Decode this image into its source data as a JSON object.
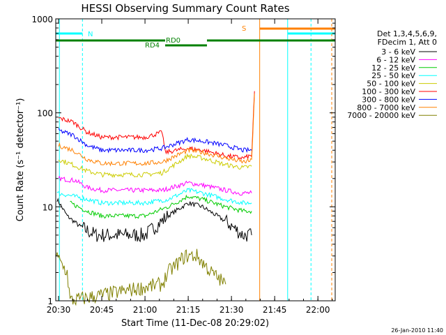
{
  "chart_data": {
    "type": "line",
    "title": "HESSI Observing Summary Count Rates",
    "xlabel": "Start Time (11-Dec-08 20:29:02)",
    "ylabel": "Count Rate (s⁻¹ detector⁻¹)",
    "y_scale": "log",
    "ylim": [
      1,
      1000
    ],
    "xlim": [
      "20:29:02",
      "22:06:00"
    ],
    "x_ticks": [
      "20:30",
      "20:45",
      "21:00",
      "21:15",
      "21:30",
      "21:45",
      "22:00"
    ],
    "y_ticks": [
      "1",
      "10",
      "100",
      "1000"
    ],
    "grid": false,
    "legend_position": "right",
    "legend_header": [
      "Det 1,3,4,5,6,9,",
      "FDecim 1, Att 0"
    ],
    "series": [
      {
        "name": "3 - 6 keV",
        "color": "#000000",
        "x": [
          "20:29:30",
          "20:33:00",
          "20:38:00",
          "20:43:00",
          "21:00:00",
          "21:08:00",
          "21:15:00",
          "21:20:00",
          "21:28:00",
          "21:34:00",
          "21:37:00"
        ],
        "values": [
          12,
          8,
          6,
          5,
          5,
          8,
          11,
          10,
          7,
          5,
          5
        ]
      },
      {
        "name": "6 - 12 keV",
        "color": "#ff00ff",
        "x": [
          "20:30:00",
          "20:36:00",
          "20:40:00",
          "20:45:00",
          "21:00:00",
          "21:06:00",
          "21:15:00",
          "21:20:00",
          "21:28:00",
          "21:33:00",
          "21:37:00"
        ],
        "values": [
          20,
          19,
          16,
          15,
          15,
          15,
          18,
          17,
          15,
          14,
          14
        ]
      },
      {
        "name": "12 - 25 keV",
        "color": "#00cc00",
        "x": [
          "20:34:00",
          "20:40:00",
          "20:45:00",
          "21:00:00",
          "21:08:00",
          "21:15:00",
          "21:20:00",
          "21:28:00",
          "21:34:00",
          "21:37:00"
        ],
        "values": [
          11,
          9,
          8,
          8,
          10,
          13,
          12,
          10,
          9,
          9
        ]
      },
      {
        "name": "25 - 50 keV",
        "color": "#00ffff",
        "x": [
          "20:29:30",
          "20:35:00",
          "20:40:00",
          "20:45:00",
          "21:00:00",
          "21:08:00",
          "21:15:00",
          "21:20:00",
          "21:28:00",
          "21:34:00",
          "21:37:00"
        ],
        "values": [
          14,
          13,
          12,
          11,
          11,
          12,
          15,
          14,
          12,
          11,
          11
        ]
      },
      {
        "name": "50 - 100 keV",
        "color": "#cccc00",
        "x": [
          "20:30:00",
          "20:35:00",
          "20:40:00",
          "20:45:00",
          "21:00:00",
          "21:06:00",
          "21:15:00",
          "21:20:00",
          "21:28:00",
          "21:34:00",
          "21:37:00"
        ],
        "values": [
          32,
          28,
          24,
          22,
          22,
          23,
          35,
          33,
          28,
          26,
          27
        ]
      },
      {
        "name": "100 - 300 keV",
        "color": "#ff0000",
        "x": [
          "20:30:00",
          "20:35:00",
          "20:40:00",
          "20:45:00",
          "21:00:00",
          "21:06:00",
          "21:07:00",
          "21:15:00",
          "21:20:00",
          "21:28:00",
          "21:34:00",
          "21:37:00",
          "21:38:00"
        ],
        "values": [
          88,
          80,
          62,
          55,
          55,
          62,
          38,
          42,
          40,
          35,
          33,
          35,
          170
        ]
      },
      {
        "name": "300 - 800 keV",
        "color": "#0000ff",
        "x": [
          "20:30:00",
          "20:35:00",
          "20:40:00",
          "20:45:00",
          "21:00:00",
          "21:06:00",
          "21:15:00",
          "21:20:00",
          "21:28:00",
          "21:34:00",
          "21:37:00"
        ],
        "values": [
          65,
          58,
          45,
          40,
          40,
          42,
          52,
          50,
          45,
          40,
          40
        ]
      },
      {
        "name": "800 - 7000 keV",
        "color": "#ff8000",
        "x": [
          "20:30:00",
          "20:35:00",
          "20:40:00",
          "20:45:00",
          "21:00:00",
          "21:06:00",
          "21:15:00",
          "21:20:00",
          "21:28:00",
          "21:34:00",
          "21:37:00",
          "21:38:00"
        ],
        "values": [
          45,
          40,
          32,
          29,
          29,
          30,
          40,
          38,
          33,
          30,
          31,
          160
        ]
      },
      {
        "name": "7000 - 20000 keV",
        "color": "#808000",
        "x": [
          "20:29:10",
          "20:33:00",
          "20:34:00",
          "21:06:00",
          "21:08:00",
          "21:14:00",
          "21:18:00",
          "21:23:00",
          "21:28:00"
        ],
        "values": [
          3,
          2,
          1,
          1.5,
          2,
          3,
          3,
          2,
          1.5
        ]
      }
    ],
    "annotations": [
      {
        "text": "N",
        "color": "#00ffff"
      },
      {
        "text": "S",
        "color": "#ff8000"
      },
      {
        "text": "RD0",
        "color": "#008000"
      },
      {
        "text": "RD4",
        "color": "#008000"
      }
    ],
    "timestamp": "26-Jan-2010 11:40"
  },
  "style": {
    "axis_color": "#000000",
    "night_color": "#00ffff",
    "saa_color": "#ff8000",
    "decim_color": "#008000"
  }
}
